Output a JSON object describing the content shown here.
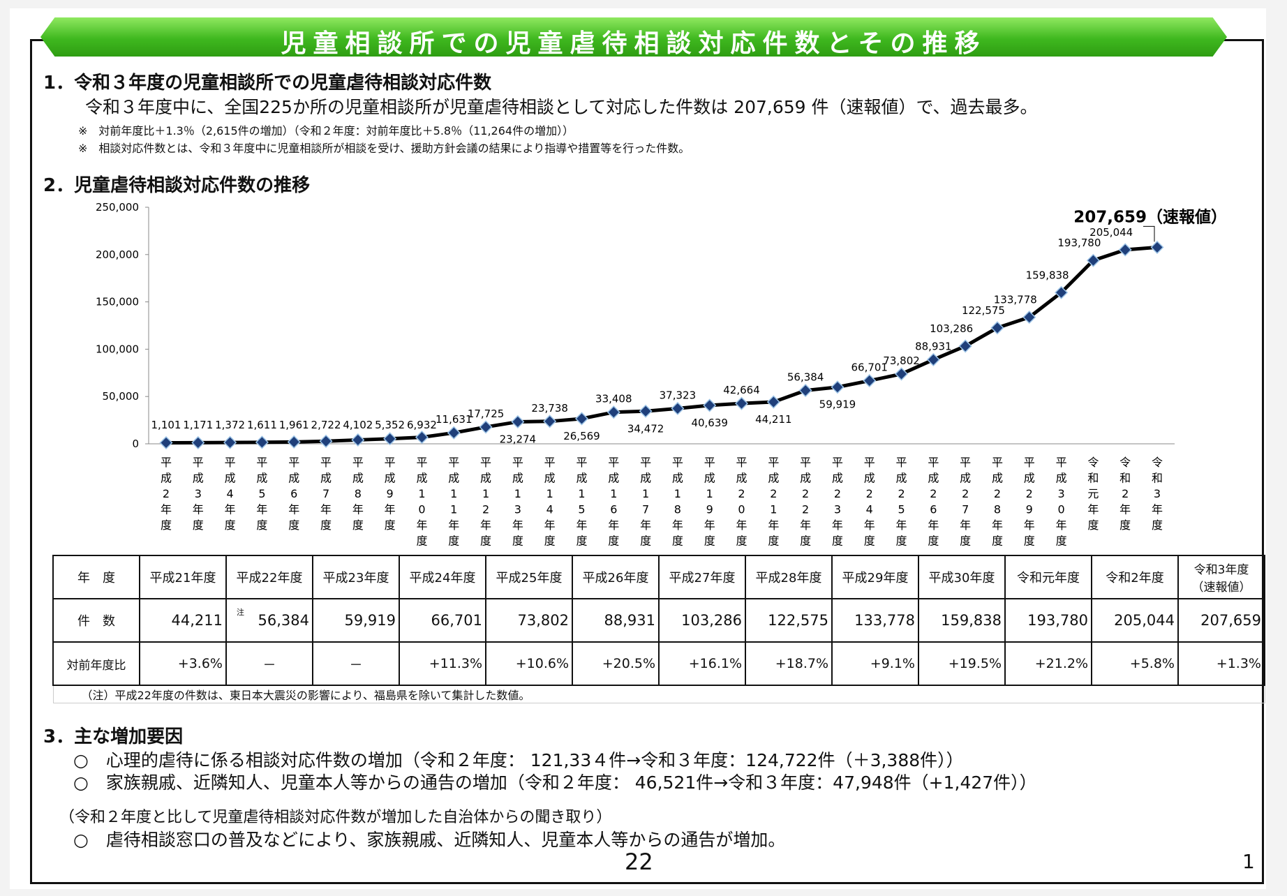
{
  "title": "児童相談所での児童虐待相談対応件数とその推移",
  "section1": {
    "heading": "1．令和３年度の児童相談所での児童虐待相談対応件数",
    "body": "令和３年度中に、全国225か所の児童相談所が児童虐待相談として対応した件数は 207,659 件（速報値）で、過去最多。",
    "notes": [
      "※　対前年度比＋1.3％（2,615件の増加）（令和２年度：対前年度比＋5.8％（11,264件の増加））",
      "※　相談対応件数とは、令和３年度中に児童相談所が相談を受け、援助方針会議の結果により指導や措置等を行った件数。"
    ]
  },
  "section2": {
    "heading": "2．児童虐待相談対応件数の推移"
  },
  "chart_data": {
    "type": "line",
    "categories": [
      "平成2年度",
      "平成3年度",
      "平成4年度",
      "平成5年度",
      "平成6年度",
      "平成7年度",
      "平成8年度",
      "平成9年度",
      "平成10年度",
      "平成11年度",
      "平成12年度",
      "平成13年度",
      "平成14年度",
      "平成15年度",
      "平成16年度",
      "平成17年度",
      "平成18年度",
      "平成19年度",
      "平成20年度",
      "平成21年度",
      "平成22年度",
      "平成23年度",
      "平成24年度",
      "平成25年度",
      "平成26年度",
      "平成27年度",
      "平成28年度",
      "平成29年度",
      "平成30年度",
      "令和元年度",
      "令和2年度",
      "令和3年度"
    ],
    "values": [
      1101,
      1171,
      1372,
      1611,
      1961,
      2722,
      4102,
      5352,
      6932,
      11631,
      17725,
      23274,
      23738,
      26569,
      33408,
      34472,
      37323,
      40639,
      42664,
      44211,
      56384,
      59919,
      66701,
      73802,
      88931,
      103286,
      122575,
      133778,
      159838,
      193780,
      205044,
      207659
    ],
    "value_labels": [
      "1,101",
      "1,171",
      "1,372",
      "1,611",
      "1,961",
      "2,722",
      "4,102",
      "5,352",
      "6,932",
      "11,631",
      "17,725",
      "23,274",
      "23,738",
      "26,569",
      "33,408",
      "34,472",
      "37,323",
      "40,639",
      "42,664",
      "44,211",
      "56,384",
      "59,919",
      "66,701",
      "73,802",
      "88,931",
      "103,286",
      "122,575",
      "133,778",
      "159,838",
      "193,780",
      "205,044",
      "207,659"
    ],
    "last_annotation": "207,659（速報値）",
    "ylim": [
      0,
      250000
    ],
    "yticks": [
      "0",
      "50,000",
      "100,000",
      "150,000",
      "200,000",
      "250,000"
    ],
    "grid": false,
    "line_color": "#000000",
    "marker_color": "#1f3f7a"
  },
  "table": {
    "headers": [
      "年　度",
      "平成21年度",
      "平成22年度",
      "平成23年度",
      "平成24年度",
      "平成25年度",
      "平成26年度",
      "平成27年度",
      "平成28年度",
      "平成29年度",
      "平成30年度",
      "令和元年度",
      "令和2年度",
      "令和3年度\n（速報値）"
    ],
    "count_label": "件　数",
    "counts": [
      "44,211",
      "56,384",
      "59,919",
      "66,701",
      "73,802",
      "88,931",
      "103,286",
      "122,575",
      "133,778",
      "159,838",
      "193,780",
      "205,044",
      "207,659"
    ],
    "note_mark": "注",
    "ratio_label": "対前年度比",
    "ratios": [
      "+3.6%",
      "－",
      "－",
      "+11.3%",
      "+10.6%",
      "+20.5%",
      "+16.1%",
      "+18.7%",
      "+9.1%",
      "+19.5%",
      "+21.2%",
      "+5.8%",
      "+1.3%"
    ],
    "footnote": "（注）平成22年度の件数は、東日本大震災の影響により、福島県を除いて集計した数値。"
  },
  "section3": {
    "heading": "3．主な増加要因",
    "items": [
      "○　心理的虐待に係る相談対応件数の増加（令和２年度： 121,33４件→令和３年度：124,722件（＋3,388件））",
      "○　家族親戚、近隣知人、児童本人等からの通告の増加（令和２年度： 46,521件→令和３年度：47,948件（+1,427件））"
    ],
    "subheading": "（令和２年度と比して児童虐待相談対応件数が増加した自治体からの聞き取り）",
    "item3": "○　虐待相談窓口の普及などにより、家族親戚、近隣知人、児童本人等からの通告が増加。"
  },
  "page_number": "22",
  "slide_number": "1"
}
